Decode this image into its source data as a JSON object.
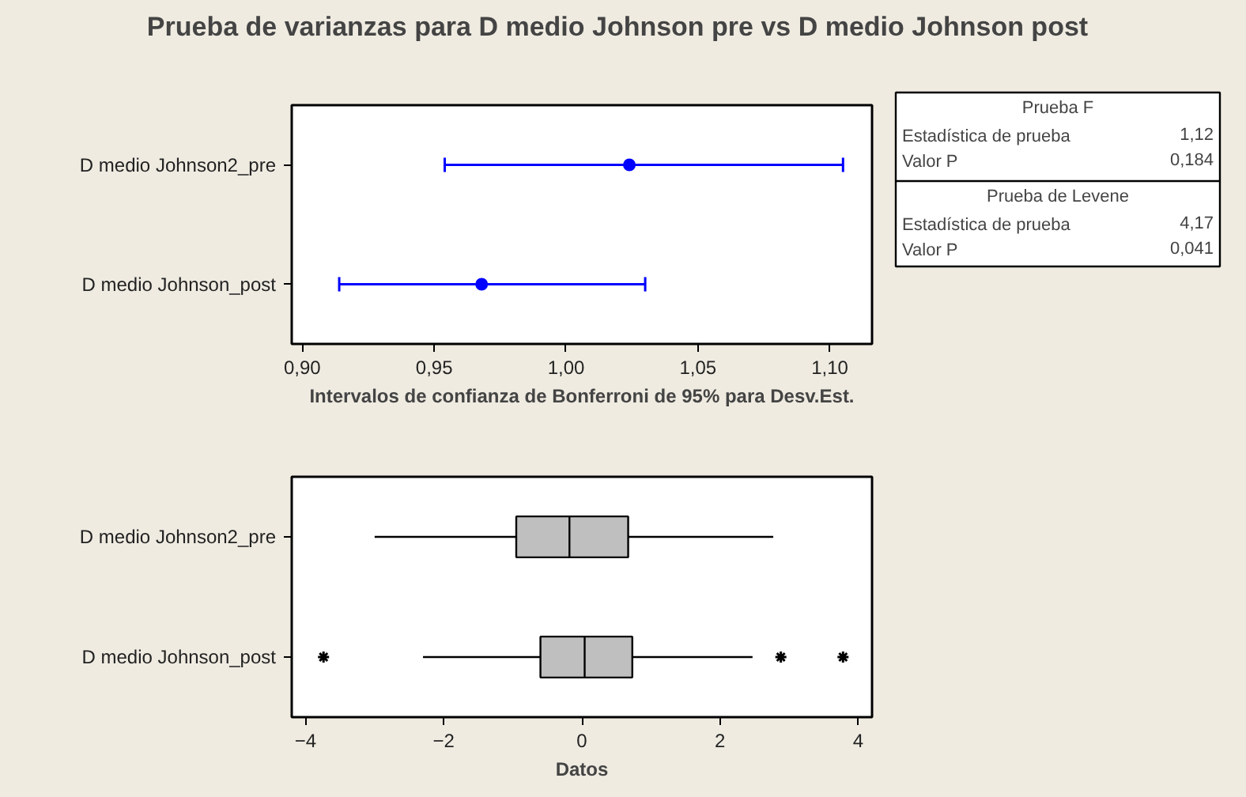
{
  "chart_data": [
    {
      "type": "scatter",
      "orientation": "horizontal",
      "title": "Prueba de varianzas para D medio Johnson pre vs D medio Johnson post",
      "xlabel": "Intervalos de confianza de Bonferroni de 95% para Desv.Est.",
      "categories": [
        "D medio Johnson2_pre",
        "D medio Johnson_post"
      ],
      "values": [
        1.024,
        0.968
      ],
      "errors": [
        [
          0.954,
          1.105
        ],
        [
          0.914,
          1.03
        ]
      ],
      "color": "#0000ff",
      "marker": "circle",
      "grid": false,
      "xlim": [
        0.896,
        1.116
      ],
      "xticks": [
        {
          "value": 0.9,
          "label": "0,90"
        },
        {
          "value": 0.95,
          "label": "0,95"
        },
        {
          "value": 1.0,
          "label": "1,00"
        },
        {
          "value": 1.05,
          "label": "1,05"
        },
        {
          "value": 1.1,
          "label": "1,10"
        }
      ]
    },
    {
      "type": "box",
      "orientation": "horizontal",
      "xlabel": "Datos",
      "categories": [
        "D medio Johnson2_pre",
        "D medio Johnson_post"
      ],
      "color": "#bfbfbf",
      "grid": false,
      "xlim": [
        -4.2,
        4.2
      ],
      "xticks": [
        -4,
        -2,
        0,
        2,
        4
      ],
      "boxes": [
        {
          "low": -3.0,
          "q1": -0.95,
          "median": -0.18,
          "q3": 0.67,
          "high": 2.77
        },
        {
          "low": -2.3,
          "q1": -0.6,
          "median": 0.04,
          "q3": 0.73,
          "high": 2.47,
          "outliers": [
            -3.74,
            2.88,
            3.78
          ]
        }
      ]
    },
    {
      "type": "other",
      "annotations": [
        "Prueba F",
        "Estadística de prueba",
        "1,12",
        "Valor P",
        "0,184",
        "Prueba de Levene",
        "Estadística de prueba",
        "4,17",
        "Valor P",
        "0,041"
      ]
    }
  ]
}
